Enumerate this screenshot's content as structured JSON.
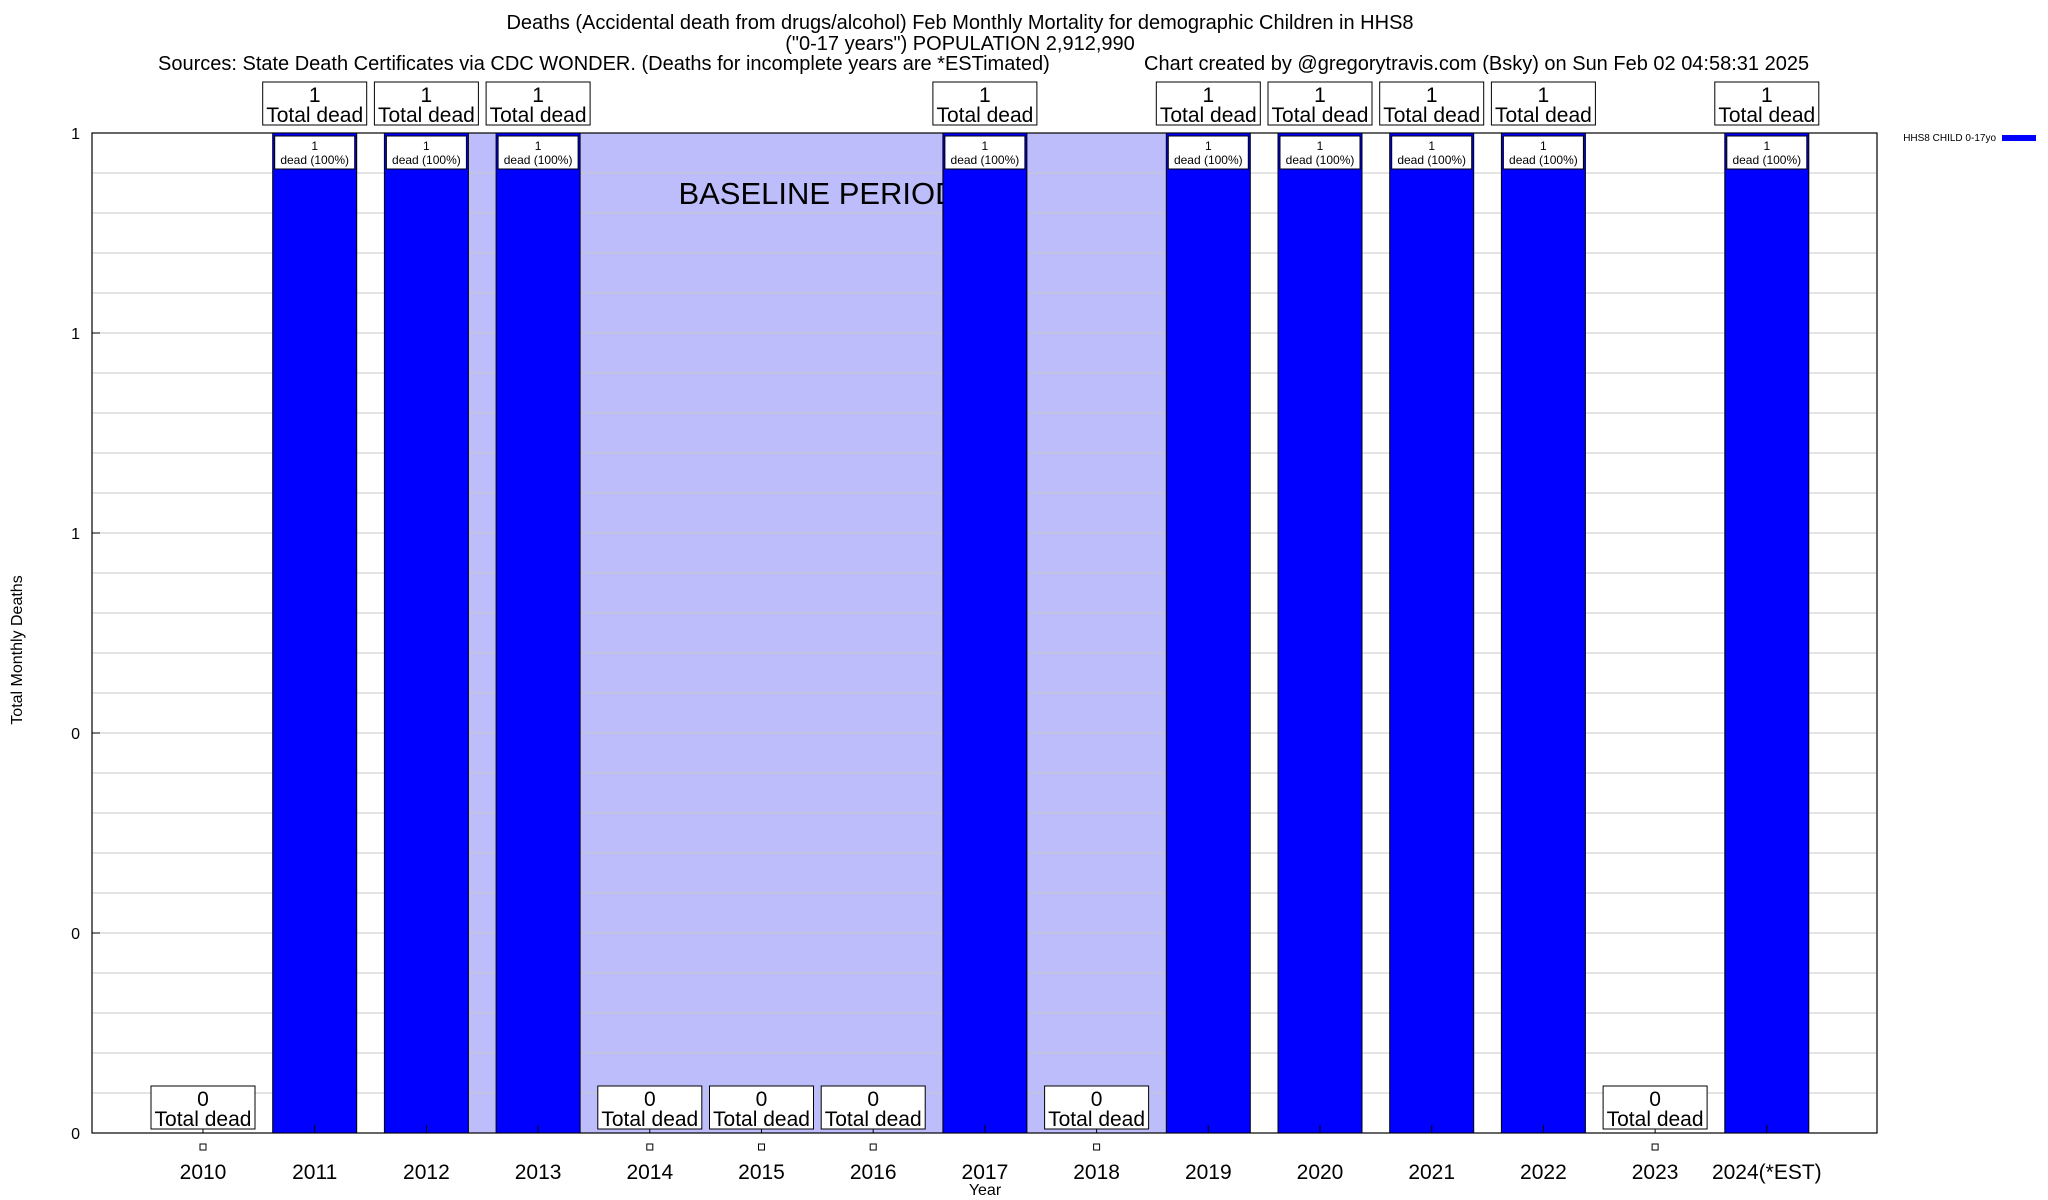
{
  "header": {
    "title_line1": "Deaths (Accidental death from drugs/alcohol) Feb Monthly Mortality for demographic Children in HHS8",
    "title_line2": "(\"0-17 years\") POPULATION 2,912,990",
    "sources": "Sources: State Death Certificates via CDC WONDER. (Deaths for incomplete years are *ESTimated)",
    "credit": "Chart created by @gregorytravis.com (Bsky) on Sun Feb 02 04:58:31 2025"
  },
  "chart_data": {
    "type": "bar",
    "title": "Deaths (Accidental death from drugs/alcohol) Feb Monthly Mortality for demographic Children in HHS8",
    "xlabel": "Year",
    "ylabel": "Total Monthly Deaths",
    "categories": [
      "2010",
      "2011",
      "2012",
      "2013",
      "2014",
      "2015",
      "2016",
      "2017",
      "2018",
      "2019",
      "2020",
      "2021",
      "2022",
      "2023",
      "2024(*EST)"
    ],
    "series": [
      {
        "name": "HHS8 CHILD 0-17yo",
        "color": "#0000ff",
        "values": [
          0,
          1,
          1,
          1,
          0,
          0,
          0,
          1,
          0,
          1,
          1,
          1,
          1,
          0,
          1
        ]
      }
    ],
    "ylim": [
      0,
      1
    ],
    "ytick_labels": [
      "0",
      "0",
      "0",
      "1",
      "1",
      "1"
    ],
    "total_label_suffix": "Total dead",
    "bar_label_suffix": "dead (100%)",
    "baseline_label": "BASELINE PERIOD",
    "baseline_color": "#bdbdfb",
    "baseline_years": [
      "2012",
      "2013",
      "2014",
      "2015",
      "2016",
      "2017",
      "2018",
      "2019"
    ],
    "legend_position": "top-right",
    "grid": true
  }
}
